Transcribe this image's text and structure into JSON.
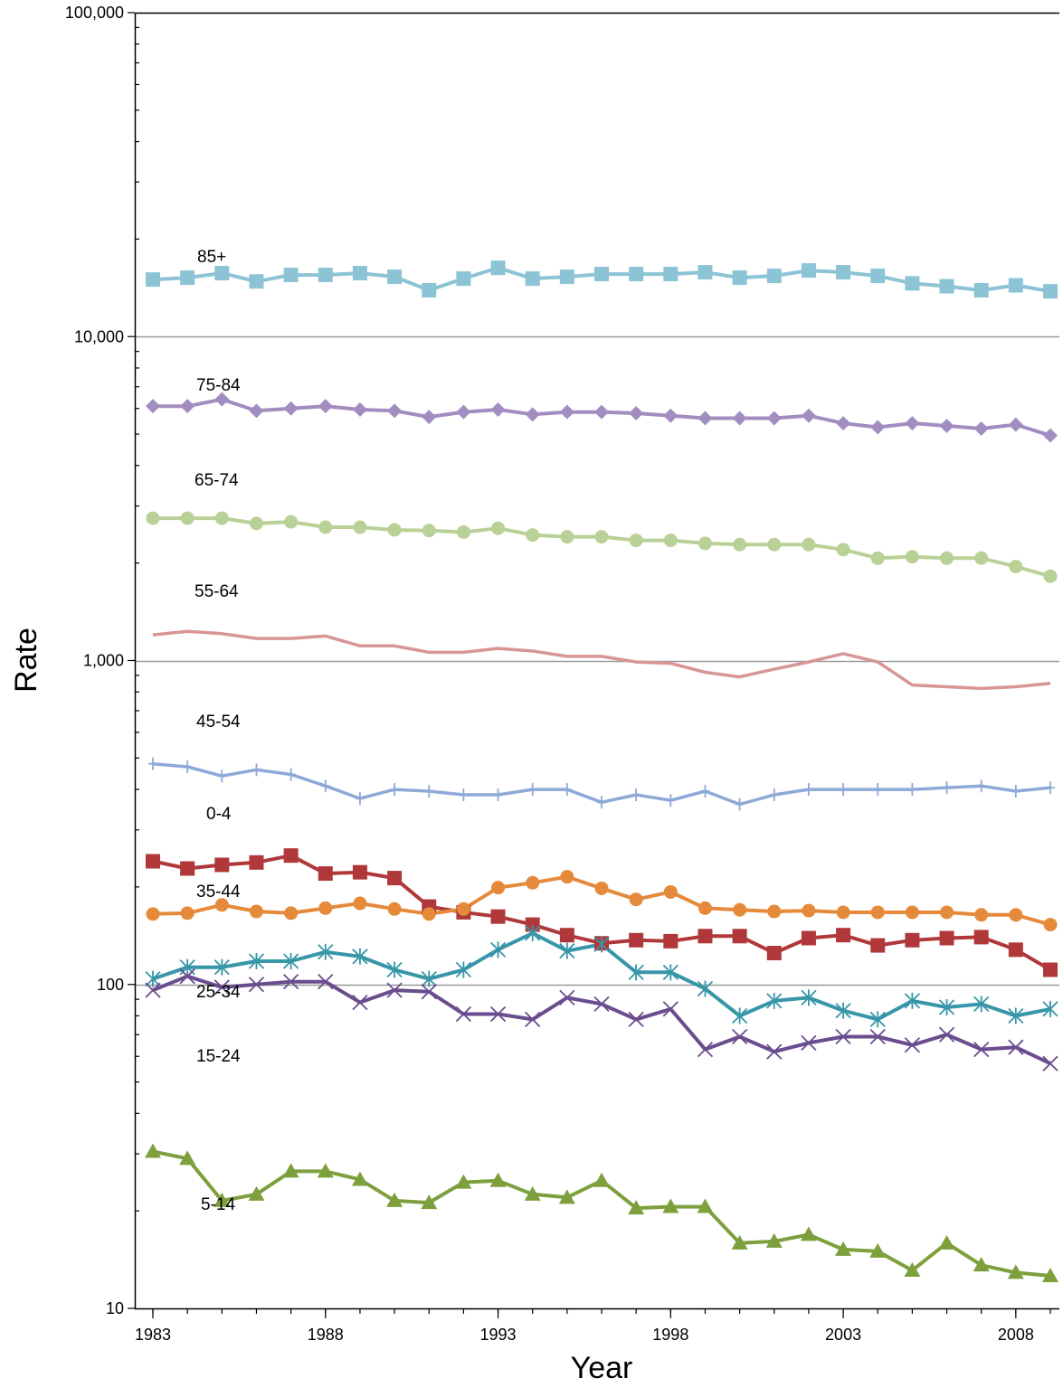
{
  "chart_data": {
    "type": "line",
    "title": "",
    "xlabel": "Year",
    "ylabel": "Rate",
    "y_scale": "log",
    "ylim": [
      10,
      100000
    ],
    "xlim": [
      1983,
      2009
    ],
    "grid": "horizontal at decades",
    "legend": "none (inline series labels)",
    "x_tick_labels": [
      "1983",
      "1988",
      "1993",
      "1998",
      "2003",
      "2008"
    ],
    "y_tick_labels": [
      "10",
      "100",
      "1,000",
      "10,000",
      "100,000"
    ],
    "x": [
      1983,
      1984,
      1985,
      1986,
      1987,
      1988,
      1989,
      1990,
      1991,
      1992,
      1993,
      1994,
      1995,
      1996,
      1997,
      1998,
      1999,
      2000,
      2001,
      2002,
      2003,
      2004,
      2005,
      2006,
      2007,
      2008,
      2009
    ],
    "series": [
      {
        "name": "85+",
        "color": "#8cc4d6",
        "marker": "square",
        "values": [
          15000,
          15200,
          15700,
          14800,
          15500,
          15500,
          15700,
          15300,
          13900,
          15100,
          16300,
          15100,
          15300,
          15600,
          15600,
          15600,
          15800,
          15200,
          15400,
          16000,
          15800,
          15400,
          14600,
          14300,
          13900,
          14400,
          13800
        ]
      },
      {
        "name": "75-84",
        "color": "#a28dc1",
        "marker": "diamond",
        "values": [
          6100,
          6100,
          6400,
          5900,
          6000,
          6100,
          5950,
          5900,
          5650,
          5850,
          5950,
          5750,
          5850,
          5850,
          5800,
          5700,
          5600,
          5600,
          5600,
          5700,
          5400,
          5250,
          5400,
          5300,
          5200,
          5350,
          4950
        ]
      },
      {
        "name": "65-74",
        "color": "#b9d197",
        "marker": "circle",
        "values": [
          2750,
          2750,
          2750,
          2650,
          2680,
          2580,
          2580,
          2530,
          2520,
          2490,
          2560,
          2440,
          2410,
          2410,
          2350,
          2350,
          2300,
          2280,
          2280,
          2280,
          2200,
          2070,
          2090,
          2070,
          2070,
          1950,
          1820
        ]
      },
      {
        "name": "55-64",
        "color": "#d89595",
        "marker": "none",
        "values": [
          1200,
          1230,
          1210,
          1170,
          1170,
          1190,
          1110,
          1110,
          1060,
          1060,
          1090,
          1070,
          1030,
          1030,
          990,
          980,
          920,
          890,
          940,
          990,
          1050,
          990,
          840,
          830,
          820,
          830,
          850
        ]
      },
      {
        "name": "45-54",
        "color": "#8ea9d8",
        "marker": "plus",
        "values": [
          480,
          470,
          440,
          460,
          445,
          410,
          375,
          400,
          395,
          385,
          385,
          400,
          400,
          365,
          385,
          370,
          395,
          360,
          385,
          400,
          400,
          400,
          400,
          405,
          410,
          395,
          405
        ]
      },
      {
        "name": "0-4",
        "color": "#b0383a",
        "marker": "square",
        "values": [
          240,
          228,
          234,
          238,
          250,
          220,
          222,
          213,
          174,
          167,
          162,
          153,
          142,
          134,
          137,
          136,
          141,
          141,
          125,
          139,
          142,
          132,
          137,
          139,
          140,
          128,
          111
        ]
      },
      {
        "name": "35-44",
        "color": "#e58a3a",
        "marker": "circle",
        "values": [
          165,
          166,
          176,
          168,
          166,
          172,
          178,
          171,
          165,
          171,
          199,
          206,
          215,
          198,
          183,
          193,
          172,
          170,
          168,
          169,
          167,
          167,
          167,
          167,
          164,
          164,
          153
        ]
      },
      {
        "name": "25-34",
        "color": "#3796a8",
        "marker": "asterisk",
        "values": [
          104,
          113,
          113,
          118,
          118,
          126,
          122,
          111,
          104,
          111,
          128,
          144,
          127,
          133,
          109,
          109,
          97,
          80,
          89,
          91,
          83,
          78,
          89,
          85,
          87,
          80,
          84
        ]
      },
      {
        "name": "15-24",
        "color": "#6a4d8f",
        "marker": "cross",
        "values": [
          96,
          106,
          98,
          100,
          102,
          102,
          88,
          96,
          95,
          81,
          81,
          78,
          91,
          87,
          78,
          84,
          63,
          69,
          62,
          66,
          69,
          69,
          65,
          70,
          63,
          64,
          57
        ]
      },
      {
        "name": "5-14",
        "color": "#7da03d",
        "marker": "triangle",
        "values": [
          30.5,
          29,
          21.5,
          22.5,
          26.5,
          26.5,
          25,
          21.5,
          21.2,
          24.5,
          24.8,
          22.5,
          22,
          24.8,
          20.4,
          20.6,
          20.6,
          15.9,
          16.1,
          16.9,
          15.2,
          15,
          13.1,
          15.9,
          13.6,
          12.9,
          12.6
        ]
      }
    ]
  }
}
